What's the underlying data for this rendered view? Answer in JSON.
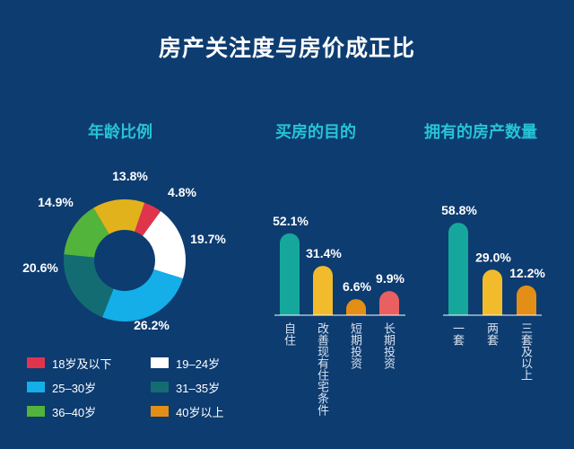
{
  "title": "房产关注度与房价成正比",
  "chart_data": [
    {
      "type": "pie",
      "title": "年龄比例",
      "categories": [
        "18岁及以下",
        "19–24岁",
        "25–30岁",
        "31–35岁",
        "36–40岁",
        "40岁以上"
      ],
      "values": [
        4.8,
        19.7,
        26.2,
        20.6,
        14.9,
        13.8
      ],
      "labels": [
        "4.8%",
        "19.7%",
        "26.2%",
        "20.6%",
        "14.9%",
        "13.8%"
      ],
      "colors": [
        "#e0344d",
        "#ffffff",
        "#14aee8",
        "#146c73",
        "#52b43a",
        "#e2b21c"
      ],
      "legend_colors": [
        "#e0344d",
        "#ffffff",
        "#14aee8",
        "#146c73",
        "#52b43a",
        "#e38e17"
      ],
      "donut": true,
      "legend_position": "bottom"
    },
    {
      "type": "bar",
      "title": "买房的目的",
      "categories": [
        "自住",
        "改善现有住宅条件",
        "短期投资",
        "长期投资"
      ],
      "values": [
        52.1,
        31.4,
        6.6,
        9.9
      ],
      "labels": [
        "52.1%",
        "31.4%",
        "6.6%",
        "9.9%"
      ],
      "colors": [
        "#16a79c",
        "#f2bb2c",
        "#e38e17",
        "#ea5f5f"
      ]
    },
    {
      "type": "bar",
      "title": "拥有的房产数量",
      "categories": [
        "一套",
        "两套",
        "三套及以上"
      ],
      "values": [
        58.8,
        29.0,
        12.2
      ],
      "labels": [
        "58.8%",
        "29.0%",
        "12.2%"
      ],
      "colors": [
        "#16a79c",
        "#f2bb2c",
        "#e38e17"
      ]
    }
  ]
}
